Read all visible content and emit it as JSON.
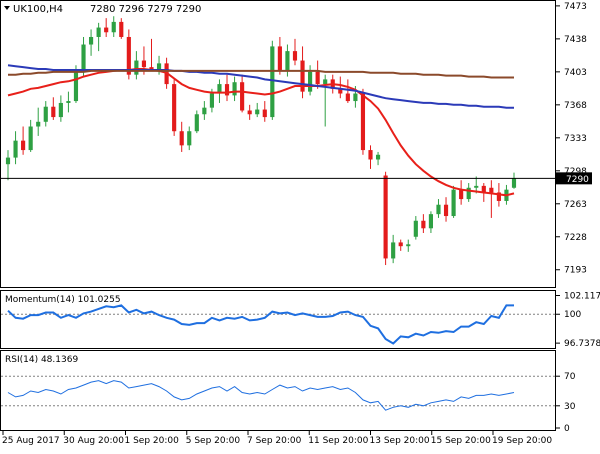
{
  "header": {
    "triangle_icon": "triangle-down-icon",
    "symbol": "UK100,H4",
    "quote": "7280 7296 7279 7290"
  },
  "colors": {
    "bull": "#2ea043",
    "bear": "#e31b1b",
    "fast_ma": "#e8201a",
    "mid_ma": "#2b3ab8",
    "slow_ma": "#8b4a2b",
    "oscillator": "#1f6fe0",
    "grid_dotted": "#808080",
    "frame": "#000000"
  },
  "chart_data": [
    {
      "type": "candlestick",
      "title": "UK100,H4",
      "ylim": [
        7180,
        7475
      ],
      "yticks": [
        "7473",
        "7438",
        "7403",
        "7368",
        "7333",
        "7298",
        "7263",
        "7228",
        "7193"
      ],
      "current_price": "7290",
      "current_price_line": 7290,
      "xticks": [
        "25 Aug 2017",
        "30 Aug 20:00",
        "1 Sep 20:00",
        "5 Sep 20:00",
        "7 Sep 20:00",
        "11 Sep 20:00",
        "13 Sep 20:00",
        "15 Sep 20:00",
        "19 Sep 20:00"
      ],
      "candles": [
        {
          "o": 7305,
          "h": 7320,
          "l": 7288,
          "c": 7312
        },
        {
          "o": 7312,
          "h": 7340,
          "l": 7305,
          "c": 7330
        },
        {
          "o": 7330,
          "h": 7345,
          "l": 7315,
          "c": 7320
        },
        {
          "o": 7320,
          "h": 7352,
          "l": 7318,
          "c": 7345
        },
        {
          "o": 7345,
          "h": 7365,
          "l": 7335,
          "c": 7350
        },
        {
          "o": 7350,
          "h": 7372,
          "l": 7345,
          "c": 7366
        },
        {
          "o": 7366,
          "h": 7376,
          "l": 7352,
          "c": 7355
        },
        {
          "o": 7355,
          "h": 7378,
          "l": 7350,
          "c": 7370
        },
        {
          "o": 7370,
          "h": 7382,
          "l": 7360,
          "c": 7372
        },
        {
          "o": 7372,
          "h": 7410,
          "l": 7370,
          "c": 7405
        },
        {
          "o": 7405,
          "h": 7440,
          "l": 7398,
          "c": 7432
        },
        {
          "o": 7432,
          "h": 7448,
          "l": 7420,
          "c": 7440
        },
        {
          "o": 7440,
          "h": 7455,
          "l": 7425,
          "c": 7450
        },
        {
          "o": 7450,
          "h": 7460,
          "l": 7440,
          "c": 7445
        },
        {
          "o": 7445,
          "h": 7462,
          "l": 7440,
          "c": 7456
        },
        {
          "o": 7456,
          "h": 7460,
          "l": 7438,
          "c": 7440
        },
        {
          "o": 7440,
          "h": 7448,
          "l": 7395,
          "c": 7400
        },
        {
          "o": 7400,
          "h": 7425,
          "l": 7395,
          "c": 7415
        },
        {
          "o": 7415,
          "h": 7430,
          "l": 7400,
          "c": 7408
        },
        {
          "o": 7408,
          "h": 7438,
          "l": 7405,
          "c": 7405
        },
        {
          "o": 7405,
          "h": 7420,
          "l": 7400,
          "c": 7412
        },
        {
          "o": 7412,
          "h": 7418,
          "l": 7385,
          "c": 7390
        },
        {
          "o": 7390,
          "h": 7395,
          "l": 7335,
          "c": 7340
        },
        {
          "o": 7340,
          "h": 7350,
          "l": 7318,
          "c": 7325
        },
        {
          "o": 7325,
          "h": 7345,
          "l": 7320,
          "c": 7340
        },
        {
          "o": 7340,
          "h": 7362,
          "l": 7338,
          "c": 7358
        },
        {
          "o": 7358,
          "h": 7372,
          "l": 7352,
          "c": 7365
        },
        {
          "o": 7365,
          "h": 7385,
          "l": 7360,
          "c": 7380
        },
        {
          "o": 7380,
          "h": 7395,
          "l": 7370,
          "c": 7390
        },
        {
          "o": 7390,
          "h": 7400,
          "l": 7372,
          "c": 7378
        },
        {
          "o": 7378,
          "h": 7398,
          "l": 7372,
          "c": 7392
        },
        {
          "o": 7392,
          "h": 7400,
          "l": 7360,
          "c": 7362
        },
        {
          "o": 7362,
          "h": 7368,
          "l": 7352,
          "c": 7358
        },
        {
          "o": 7358,
          "h": 7370,
          "l": 7355,
          "c": 7363
        },
        {
          "o": 7363,
          "h": 7372,
          "l": 7350,
          "c": 7355
        },
        {
          "o": 7355,
          "h": 7436,
          "l": 7352,
          "c": 7430
        },
        {
          "o": 7430,
          "h": 7440,
          "l": 7400,
          "c": 7405
        },
        {
          "o": 7405,
          "h": 7432,
          "l": 7398,
          "c": 7425
        },
        {
          "o": 7425,
          "h": 7438,
          "l": 7410,
          "c": 7415
        },
        {
          "o": 7415,
          "h": 7430,
          "l": 7375,
          "c": 7382
        },
        {
          "o": 7382,
          "h": 7410,
          "l": 7378,
          "c": 7403
        },
        {
          "o": 7403,
          "h": 7415,
          "l": 7385,
          "c": 7390
        },
        {
          "o": 7390,
          "h": 7400,
          "l": 7345,
          "c": 7395
        },
        {
          "o": 7395,
          "h": 7400,
          "l": 7380,
          "c": 7385
        },
        {
          "o": 7385,
          "h": 7398,
          "l": 7375,
          "c": 7380
        },
        {
          "o": 7380,
          "h": 7395,
          "l": 7370,
          "c": 7372
        },
        {
          "o": 7372,
          "h": 7388,
          "l": 7365,
          "c": 7380
        },
        {
          "o": 7380,
          "h": 7385,
          "l": 7315,
          "c": 7320
        },
        {
          "o": 7320,
          "h": 7325,
          "l": 7300,
          "c": 7310
        },
        {
          "o": 7310,
          "h": 7318,
          "l": 7304,
          "c": 7315
        },
        {
          "o": 7293,
          "h": 7297,
          "l": 7198,
          "c": 7205
        },
        {
          "o": 7205,
          "h": 7230,
          "l": 7200,
          "c": 7222
        },
        {
          "o": 7222,
          "h": 7225,
          "l": 7213,
          "c": 7218
        },
        {
          "o": 7218,
          "h": 7225,
          "l": 7212,
          "c": 7220
        },
        {
          "o": 7228,
          "h": 7250,
          "l": 7225,
          "c": 7245
        },
        {
          "o": 7245,
          "h": 7252,
          "l": 7232,
          "c": 7237
        },
        {
          "o": 7237,
          "h": 7255,
          "l": 7232,
          "c": 7252
        },
        {
          "o": 7252,
          "h": 7268,
          "l": 7248,
          "c": 7262
        },
        {
          "o": 7262,
          "h": 7270,
          "l": 7244,
          "c": 7250
        },
        {
          "o": 7250,
          "h": 7282,
          "l": 7248,
          "c": 7278
        },
        {
          "o": 7278,
          "h": 7288,
          "l": 7262,
          "c": 7268
        },
        {
          "o": 7268,
          "h": 7285,
          "l": 7265,
          "c": 7280
        },
        {
          "o": 7280,
          "h": 7292,
          "l": 7274,
          "c": 7282
        },
        {
          "o": 7282,
          "h": 7285,
          "l": 7265,
          "c": 7275
        },
        {
          "o": 7280,
          "h": 7288,
          "l": 7248,
          "c": 7275
        },
        {
          "o": 7275,
          "h": 7285,
          "l": 7260,
          "c": 7266
        },
        {
          "o": 7266,
          "h": 7283,
          "l": 7262,
          "c": 7278
        },
        {
          "o": 7280,
          "h": 7296,
          "l": 7279,
          "c": 7290
        }
      ],
      "moving_averages": [
        {
          "role": "fast",
          "values": [
            7378,
            7380,
            7382,
            7385,
            7386,
            7388,
            7390,
            7392,
            7393,
            7395,
            7398,
            7400,
            7402,
            7403,
            7404,
            7405,
            7405,
            7406,
            7406,
            7405,
            7404,
            7402,
            7396,
            7390,
            7386,
            7384,
            7382,
            7381,
            7381,
            7381,
            7382,
            7382,
            7381,
            7380,
            7379,
            7380,
            7382,
            7385,
            7388,
            7388,
            7388,
            7388,
            7389,
            7390,
            7389,
            7387,
            7384,
            7378,
            7372,
            7364,
            7352,
            7338,
            7325,
            7314,
            7305,
            7298,
            7292,
            7287,
            7283,
            7280,
            7278,
            7277,
            7276,
            7275,
            7274,
            7273,
            7272,
            7274
          ]
        },
        {
          "role": "mid",
          "values": [
            7410,
            7409,
            7408,
            7407,
            7406,
            7406,
            7405,
            7405,
            7405,
            7405,
            7405,
            7405,
            7405,
            7405,
            7405,
            7405,
            7405,
            7405,
            7405,
            7405,
            7405,
            7405,
            7404,
            7404,
            7403,
            7403,
            7402,
            7402,
            7401,
            7401,
            7400,
            7399,
            7398,
            7397,
            7395,
            7394,
            7393,
            7392,
            7391,
            7390,
            7389,
            7388,
            7387,
            7386,
            7385,
            7384,
            7383,
            7381,
            7379,
            7377,
            7375,
            7374,
            7373,
            7372,
            7371,
            7370,
            7370,
            7369,
            7369,
            7368,
            7368,
            7367,
            7367,
            7366,
            7366,
            7366,
            7365,
            7365
          ]
        },
        {
          "role": "slow",
          "values": [
            7400,
            7400,
            7401,
            7401,
            7402,
            7402,
            7403,
            7403,
            7403,
            7403,
            7403,
            7404,
            7404,
            7404,
            7404,
            7404,
            7404,
            7404,
            7404,
            7404,
            7404,
            7404,
            7404,
            7404,
            7404,
            7404,
            7404,
            7404,
            7404,
            7404,
            7404,
            7404,
            7404,
            7404,
            7404,
            7404,
            7404,
            7404,
            7404,
            7404,
            7404,
            7404,
            7403,
            7403,
            7403,
            7403,
            7403,
            7403,
            7402,
            7402,
            7402,
            7402,
            7401,
            7401,
            7401,
            7400,
            7400,
            7400,
            7399,
            7399,
            7399,
            7398,
            7398,
            7398,
            7397,
            7397,
            7397,
            7397
          ]
        }
      ]
    },
    {
      "type": "line",
      "title": "Momentum(14) 101.0255",
      "ylim": [
        96.3,
        102.4
      ],
      "yticks": [
        "102.1171",
        "100",
        "96.7378"
      ],
      "level_line": 100,
      "values": [
        100.4,
        99.6,
        99.5,
        99.9,
        99.9,
        100.2,
        100.2,
        99.6,
        99.9,
        99.6,
        100.1,
        100.3,
        100.6,
        100.9,
        100.8,
        101.0,
        100.2,
        100.5,
        100.1,
        100.3,
        99.9,
        99.6,
        99.4,
        98.9,
        98.8,
        99.0,
        99.0,
        99.6,
        99.3,
        99.6,
        99.5,
        99.7,
        99.3,
        99.4,
        99.6,
        100.3,
        100.1,
        100.2,
        99.9,
        100.1,
        99.9,
        99.7,
        99.7,
        99.8,
        100.2,
        100.3,
        99.9,
        99.7,
        98.7,
        98.4,
        97.2,
        96.7,
        97.5,
        97.4,
        97.8,
        97.6,
        98.0,
        97.9,
        98.1,
        98.0,
        98.6,
        98.6,
        99.1,
        98.9,
        99.8,
        99.6,
        101.0,
        101.0
      ]
    },
    {
      "type": "line",
      "title": "RSI(14) 48.1369",
      "ylim": [
        0,
        100
      ],
      "yticks": [
        "70",
        "30",
        "0"
      ],
      "levels": [
        70,
        30
      ],
      "values": [
        48,
        42,
        44,
        50,
        48,
        52,
        50,
        46,
        52,
        54,
        58,
        62,
        64,
        60,
        64,
        62,
        54,
        56,
        58,
        60,
        56,
        50,
        42,
        38,
        40,
        46,
        50,
        54,
        56,
        50,
        56,
        48,
        46,
        48,
        46,
        52,
        58,
        54,
        56,
        50,
        54,
        52,
        54,
        56,
        52,
        54,
        48,
        38,
        34,
        36,
        24,
        28,
        30,
        28,
        32,
        30,
        34,
        36,
        38,
        36,
        42,
        40,
        44,
        44,
        46,
        44,
        46,
        48
      ]
    }
  ]
}
